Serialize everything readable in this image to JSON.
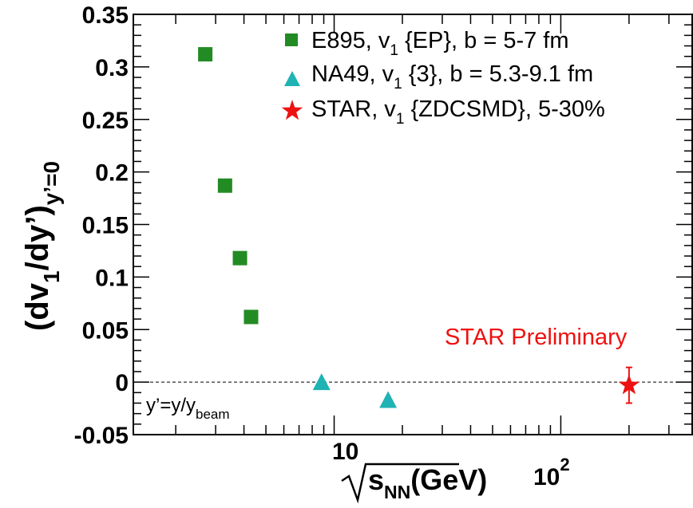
{
  "chart_data": {
    "type": "scatter",
    "x_scale": "log",
    "xlim": [
      1.3,
      380
    ],
    "ylim": [
      -0.05,
      0.35
    ],
    "y_ticks": [
      "-0.05",
      "0",
      "0.05",
      "0.1",
      "0.15",
      "0.2",
      "0.25",
      "0.3",
      "0.35"
    ],
    "x_tick_labels": {
      "ten": "10",
      "hundred_base": "10",
      "hundred_exp": "2"
    },
    "xlabel": {
      "sqrt_s": "s",
      "sub": "NN",
      "rest": "(GeV)"
    },
    "ylabel": {
      "open": "(dv",
      "sub1": "1",
      "mid": "/dy’)",
      "sub2": "y’=0"
    },
    "series": [
      {
        "legend_main": "E895, v",
        "legend_sub": "1",
        "legend_rest": " {EP}, b = 5-7 fm",
        "marker": "square",
        "color": "#238b23",
        "points": [
          {
            "x": 2.7,
            "y": 0.312
          },
          {
            "x": 3.3,
            "y": 0.187
          },
          {
            "x": 3.84,
            "y": 0.118
          },
          {
            "x": 4.3,
            "y": 0.062
          }
        ]
      },
      {
        "legend_main": "NA49, v",
        "legend_sub": "1",
        "legend_rest": " {3}, b = 5.3-9.1 fm",
        "marker": "triangle",
        "color": "#1fb3b3",
        "points": [
          {
            "x": 8.8,
            "y": 0.0
          },
          {
            "x": 17.3,
            "y": -0.017
          }
        ]
      },
      {
        "legend_main": "STAR, v",
        "legend_sub": "1",
        "legend_rest": " {ZDCSMD}, 5-30%",
        "marker": "star",
        "color": "#ee1111",
        "points": [
          {
            "x": 200,
            "y": -0.003,
            "err": 0.017
          }
        ]
      }
    ],
    "annotations": {
      "preliminary": "STAR Preliminary",
      "preliminary_color": "#ee1111",
      "rapidity_main": "y’=y/y",
      "rapidity_sub": "beam"
    },
    "zero_line": "dashed"
  }
}
